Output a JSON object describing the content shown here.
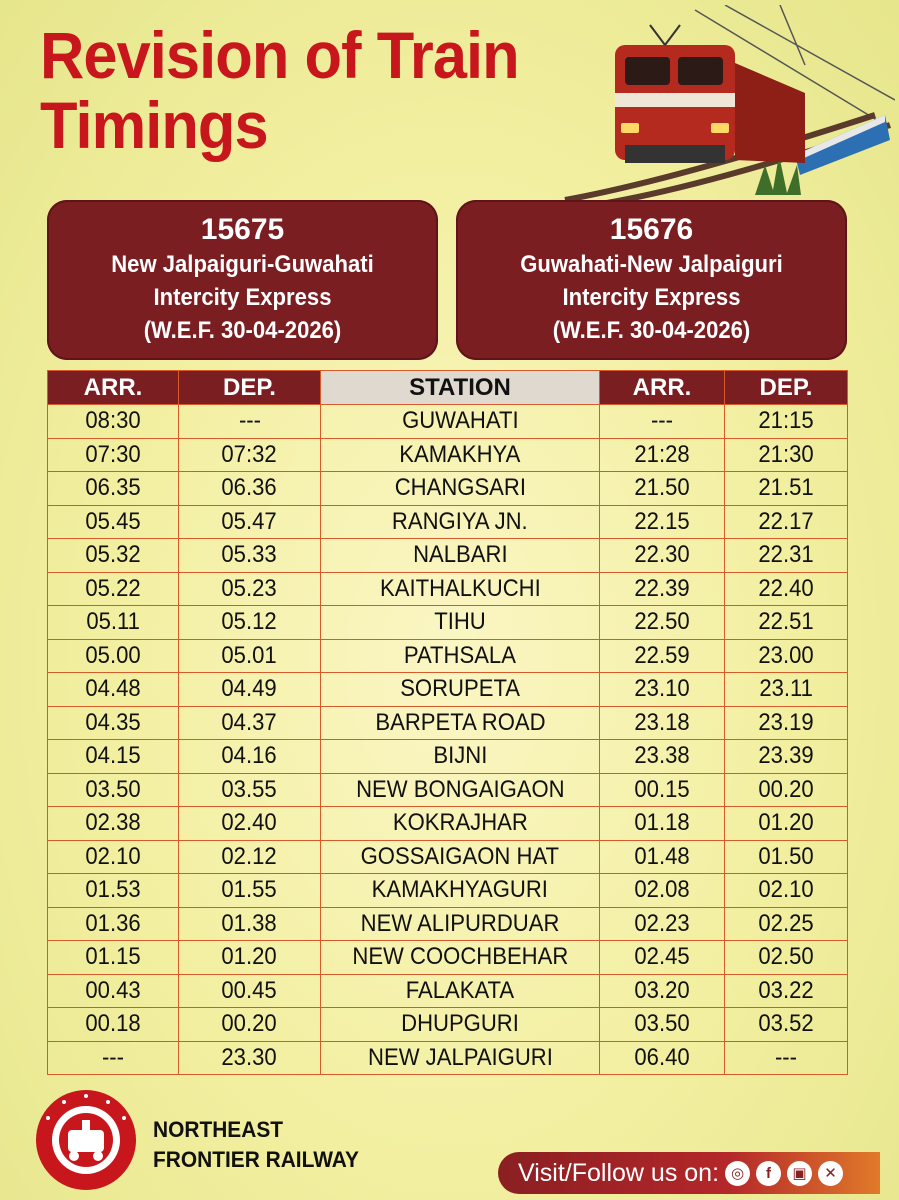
{
  "title": {
    "line1": "Revision of Train",
    "line2": "Timings"
  },
  "train_left": {
    "number": "15675",
    "name": "New Jalpaiguri-Guwahati",
    "type": "Intercity Express",
    "wef": "(W.E.F. 30-04-2026)"
  },
  "train_right": {
    "number": "15676",
    "name": "Guwahati-New Jalpaiguri",
    "type": "Intercity Express",
    "wef": "(W.E.F. 30-04-2026)"
  },
  "table": {
    "headers": [
      "ARR.",
      "DEP.",
      "STATION",
      "ARR.",
      "DEP."
    ],
    "rows": [
      [
        "08:30",
        "---",
        "GUWAHATI",
        "---",
        "21:15"
      ],
      [
        "07:30",
        "07:32",
        "KAMAKHYA",
        "21:28",
        "21:30"
      ],
      [
        "06.35",
        "06.36",
        "CHANGSARI",
        "21.50",
        "21.51"
      ],
      [
        "05.45",
        "05.47",
        "RANGIYA JN.",
        "22.15",
        "22.17"
      ],
      [
        "05.32",
        "05.33",
        "NALBARI",
        "22.30",
        "22.31"
      ],
      [
        "05.22",
        "05.23",
        "KAITHALKUCHI",
        "22.39",
        "22.40"
      ],
      [
        "05.11",
        "05.12",
        "TIHU",
        "22.50",
        "22.51"
      ],
      [
        "05.00",
        "05.01",
        "PATHSALA",
        "22.59",
        "23.00"
      ],
      [
        "04.48",
        "04.49",
        "SORUPETA",
        "23.10",
        "23.11"
      ],
      [
        "04.35",
        "04.37",
        "BARPETA ROAD",
        "23.18",
        "23.19"
      ],
      [
        "04.15",
        "04.16",
        "BIJNI",
        "23.38",
        "23.39"
      ],
      [
        "03.50",
        "03.55",
        "NEW BONGAIGAON",
        "00.15",
        "00.20"
      ],
      [
        "02.38",
        "02.40",
        "KOKRAJHAR",
        "01.18",
        "01.20"
      ],
      [
        "02.10",
        "02.12",
        "GOSSAIGAON HAT",
        "01.48",
        "01.50"
      ],
      [
        "01.53",
        "01.55",
        "KAMAKHYAGURI",
        "02.08",
        "02.10"
      ],
      [
        "01.36",
        "01.38",
        "NEW ALIPURDUAR",
        "02.23",
        "02.25"
      ],
      [
        "01.15",
        "01.20",
        "NEW COOCHBEHAR",
        "02.45",
        "02.50"
      ],
      [
        "00.43",
        "00.45",
        "FALAKATA",
        "03.20",
        "03.22"
      ],
      [
        "00.18",
        "00.20",
        "DHUPGURI",
        "03.50",
        "03.52"
      ],
      [
        "---",
        "23.30",
        "NEW JALPAIGURI",
        "06.40",
        "---"
      ]
    ]
  },
  "footer": {
    "org_line1": "NORTHEAST",
    "org_line2": "FRONTIER RAILWAY",
    "emblem_text": "भारतीय रेल • INDIAN RAILWAYS",
    "follow_label": "Visit/Follow us on:",
    "social_icons": [
      "dribbble-icon",
      "facebook-icon",
      "instagram-icon",
      "x-icon"
    ]
  },
  "colors": {
    "title_red": "#c8161d",
    "card_maroon": "#7a1e22",
    "table_border": "#d65a2a",
    "background": "#f2efa0"
  }
}
